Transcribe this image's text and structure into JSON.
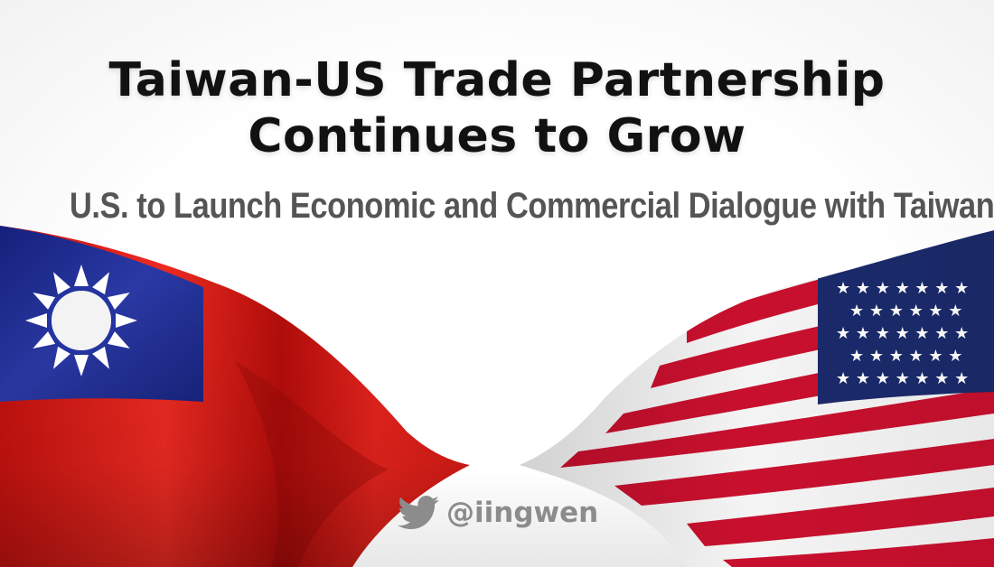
{
  "headline": {
    "line1": "Taiwan-US Trade Partnership",
    "line2": "Continues to Grow"
  },
  "subheadline": "U.S. to Launch Economic and Commercial Dialogue with Taiwan",
  "credit": {
    "icon": "twitter-bird-icon",
    "handle": "@iingwen"
  },
  "colors": {
    "taiwan_red": "#e0201b",
    "taiwan_blue": "#1d2a8f",
    "us_red": "#c8102e",
    "us_blue": "#1b2a6b",
    "headline": "#111111",
    "subheadline": "#555555",
    "credit": "#8c8c8c"
  }
}
